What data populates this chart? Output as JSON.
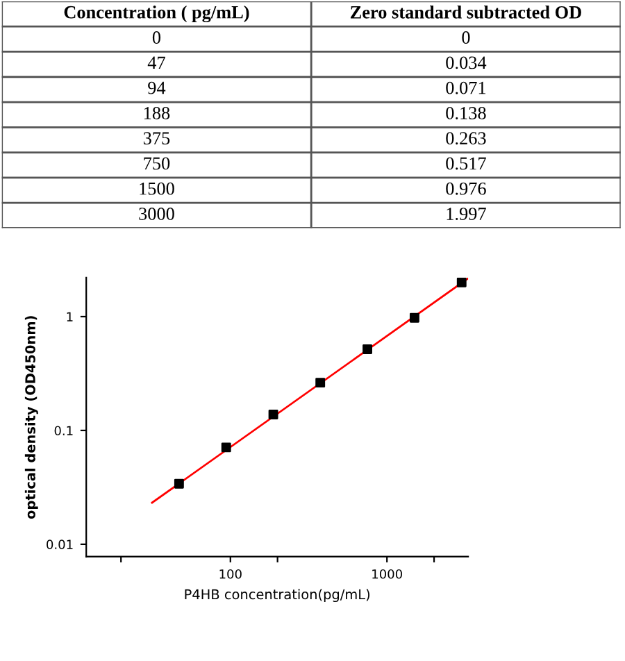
{
  "chart_data": [
    {
      "type": "other",
      "annotations": [
        "Concentration ( pg/mL)",
        "Zero standard subtracted OD",
        "0",
        "0",
        "47",
        "0.034",
        "94",
        "0.071",
        "188",
        "0.138",
        "375",
        "0.263",
        "750",
        "0.517",
        "1500",
        "0.976",
        "3000",
        "1.997"
      ]
    },
    {
      "type": "scatter",
      "xlabel": "P4HB concentration(pg/mL)",
      "ylabel": "optical density (OD450nm)",
      "log": "xy",
      "xlim": [
        12,
        3300
      ],
      "ylim": [
        0.0078,
        2.2
      ],
      "xticks": [
        {
          "value": 20,
          "label": null
        },
        100,
        {
          "value": 200,
          "label": null
        },
        1000,
        {
          "value": 2000,
          "label": null
        }
      ],
      "yticks": [
        0.01,
        0.1,
        1
      ],
      "grid": false,
      "series": [
        {
          "type": "scatter",
          "color": "#000000",
          "marker": "square",
          "x": [
            47,
            94,
            188,
            375,
            750,
            1500,
            3000
          ],
          "values": [
            0.034,
            0.071,
            0.138,
            0.263,
            0.517,
            0.976,
            1.997
          ]
        },
        {
          "type": "line",
          "color": "#ff0000",
          "marker": "none",
          "line_style": "solid",
          "x": [
            31.6,
            3270
          ],
          "values": [
            0.0232,
            2.15
          ]
        }
      ]
    }
  ]
}
